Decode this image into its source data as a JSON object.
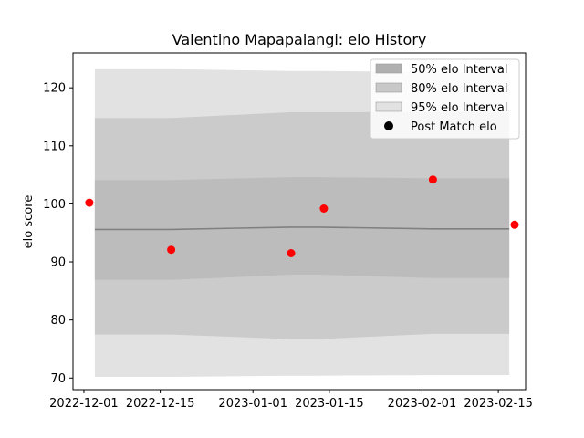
{
  "chart_data": {
    "type": "line",
    "title": "Valentino Mapapalangi: elo History",
    "xlabel": "",
    "ylabel": "elo score",
    "xlim": [
      "2022-11-29",
      "2023-02-20"
    ],
    "ylim": [
      68,
      126
    ],
    "x_ticks": [
      "2022-12-01",
      "2022-12-15",
      "2023-01-01",
      "2023-01-15",
      "2023-02-01",
      "2023-02-15"
    ],
    "y_ticks": [
      70,
      80,
      90,
      100,
      110,
      120
    ],
    "grid": false,
    "legend_position": "top-right",
    "x": [
      "2022-12-03",
      "2022-12-17",
      "2023-01-08",
      "2023-01-13",
      "2023-02-03",
      "2023-02-17"
    ],
    "mean": [
      95.6,
      95.6,
      96.0,
      96.0,
      95.7,
      95.7
    ],
    "bands": [
      {
        "name": "95% elo Interval",
        "color": "#e2e2e2",
        "lower": [
          70.2,
          70.2,
          70.4,
          70.4,
          70.5,
          70.5
        ],
        "upper": [
          123.2,
          123.2,
          122.9,
          122.9,
          122.7,
          122.7
        ]
      },
      {
        "name": "80% elo Interval",
        "color": "#cbcbcb",
        "lower": [
          77.5,
          77.5,
          76.7,
          76.7,
          77.6,
          77.6
        ],
        "upper": [
          114.8,
          114.8,
          115.8,
          115.8,
          115.8,
          115.8
        ]
      },
      {
        "name": "50% elo Interval",
        "color": "#bcbcbc",
        "lower": [
          86.9,
          86.9,
          87.8,
          87.8,
          87.2,
          87.2
        ],
        "upper": [
          104.1,
          104.1,
          104.6,
          104.6,
          104.4,
          104.4
        ]
      }
    ],
    "series": [
      {
        "name": "Post Match elo",
        "color": "#ff0000",
        "x": [
          "2022-12-02",
          "2022-12-17",
          "2023-01-08",
          "2023-01-14",
          "2023-02-03",
          "2023-02-18"
        ],
        "values": [
          100.2,
          92.1,
          91.5,
          99.2,
          104.2,
          96.4
        ]
      }
    ],
    "legend": [
      {
        "label": "50% elo Interval",
        "color": "#b0b0b0"
      },
      {
        "label": "80% elo Interval",
        "color": "#c8c8c8"
      },
      {
        "label": "95% elo Interval",
        "color": "#e2e2e2"
      },
      {
        "label": "Post Match elo",
        "color": "#000000"
      }
    ]
  }
}
